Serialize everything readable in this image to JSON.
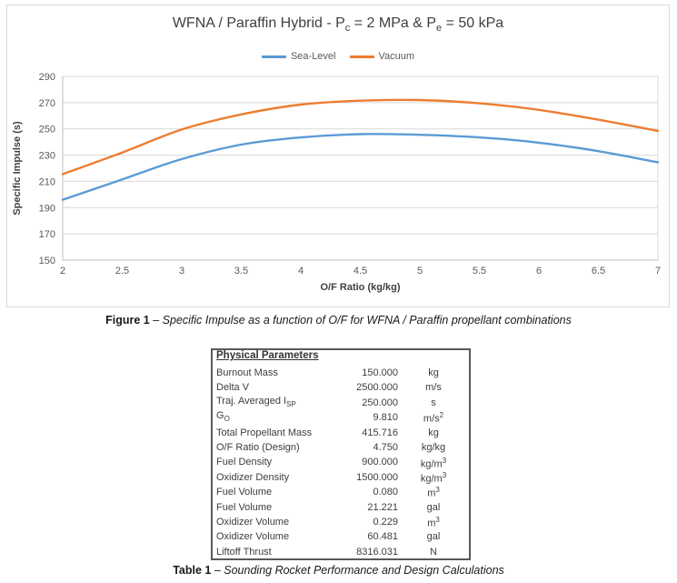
{
  "figure_caption": {
    "label": "Figure 1",
    "text": "– Specific Impulse as a function of O/F for WFNA / Paraffin propellant combinations"
  },
  "table_caption": {
    "label": "Table 1",
    "text": "– Sounding Rocket Performance and Design Calculations"
  },
  "chart_data": {
    "type": "line",
    "title": "WFNA / Paraffin Hybrid - Pc = 2 MPa & Pe = 50 kPa",
    "title_parts": {
      "p1": "WFNA / Paraffin Hybrid - P",
      "sub1": "c",
      "p2": " = 2 MPa & P",
      "sub2": "e",
      "p3": " = 50 kPa"
    },
    "xlabel": "O/F Ratio (kg/kg)",
    "ylabel": "Specific Impulse (s)",
    "xlim": [
      2,
      7
    ],
    "ylim": [
      150,
      290
    ],
    "xticks": [
      "2",
      "2.5",
      "3",
      "3.5",
      "4",
      "4.5",
      "5",
      "5.5",
      "6",
      "6.5",
      "7"
    ],
    "yticks": [
      290,
      270,
      250,
      230,
      210,
      190,
      170,
      150
    ],
    "grid": "horizontal",
    "legend_position": "top",
    "x": [
      2,
      2.5,
      3,
      3.5,
      4,
      4.5,
      5,
      5.5,
      6,
      6.5,
      7
    ],
    "series": [
      {
        "name": "Sea-Level",
        "color": "#5B9BD5",
        "values": [
          196,
          211.5,
          227,
          238,
          243.5,
          246,
          245.5,
          243.5,
          239.5,
          233,
          224.5
        ]
      },
      {
        "name": "Vacuum",
        "color": "#ED7D31",
        "values": [
          215.5,
          232,
          249.5,
          261,
          268.5,
          271.5,
          272,
          269.5,
          264.5,
          257,
          248.5
        ]
      }
    ],
    "colors": {
      "gridline": "#D9D9D9",
      "axis_line": "#BFBFBF",
      "tick_text": "#595959",
      "axis_title_text": "#404040"
    }
  },
  "table": {
    "header": "Physical Parameters",
    "rows": [
      {
        "name": "Burnout Mass",
        "sub": "",
        "value": "150.000",
        "unit": "kg",
        "sup": ""
      },
      {
        "name": "Delta V",
        "sub": "",
        "value": "2500.000",
        "unit": "m/s",
        "sup": ""
      },
      {
        "name": "Traj. Averaged I",
        "sub": "SP",
        "value": "250.000",
        "unit": "s",
        "sup": ""
      },
      {
        "name": "G",
        "sub": "O",
        "value": "9.810",
        "unit": "m/s",
        "sup": "2"
      },
      {
        "name": "Total Propellant Mass",
        "sub": "",
        "value": "415.716",
        "unit": "kg",
        "sup": ""
      },
      {
        "name": "O/F Ratio (Design)",
        "sub": "",
        "value": "4.750",
        "unit": "kg/kg",
        "sup": ""
      },
      {
        "name": "Fuel Density",
        "sub": "",
        "value": "900.000",
        "unit": "kg/m",
        "sup": "3"
      },
      {
        "name": "Oxidizer Density",
        "sub": "",
        "value": "1500.000",
        "unit": "kg/m",
        "sup": "3"
      },
      {
        "name": "Fuel Volume",
        "sub": "",
        "value": "0.080",
        "unit": "m",
        "sup": "3"
      },
      {
        "name": "Fuel Volume",
        "sub": "",
        "value": "21.221",
        "unit": "gal",
        "sup": ""
      },
      {
        "name": "Oxidizer Volume",
        "sub": "",
        "value": "0.229",
        "unit": "m",
        "sup": "3"
      },
      {
        "name": "Oxidizer Volume",
        "sub": "",
        "value": "60.481",
        "unit": "gal",
        "sup": ""
      },
      {
        "name": "Liftoff Thrust",
        "sub": "",
        "value": "8316.031",
        "unit": "N",
        "sup": ""
      }
    ]
  }
}
